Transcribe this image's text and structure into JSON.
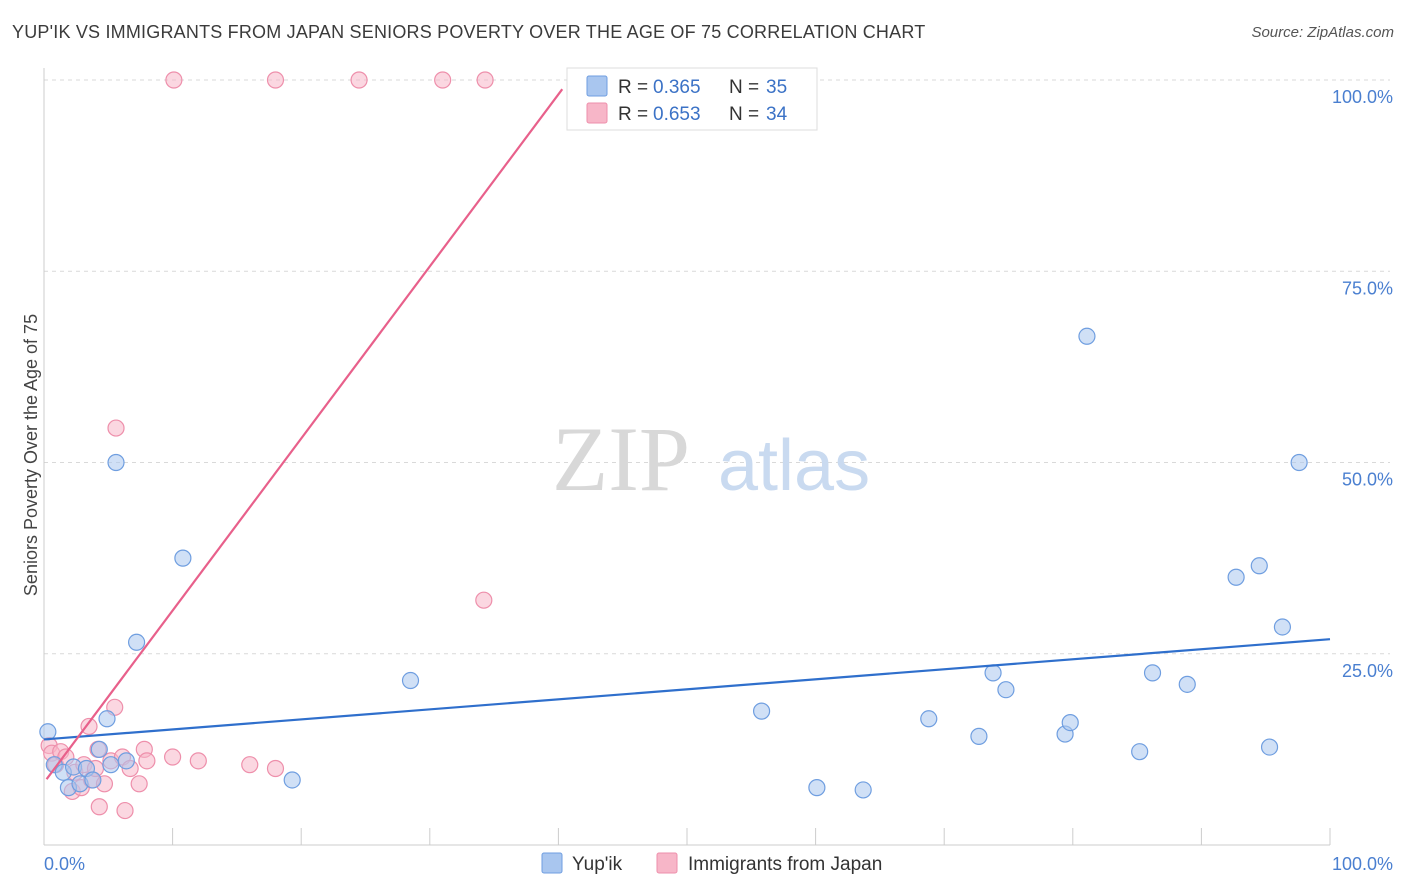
{
  "title": "YUP'IK VS IMMIGRANTS FROM JAPAN SENIORS POVERTY OVER THE AGE OF 75 CORRELATION CHART",
  "source": "Source: ZipAtlas.com",
  "watermark": {
    "zip": "ZIP",
    "atlas": "atlas"
  },
  "colors": {
    "blue_fill": "#a9c6ef",
    "blue_stroke": "#6f9ee0",
    "blue_line": "#2f6fcc",
    "pink_fill": "#f7b6c8",
    "pink_stroke": "#ee8fab",
    "pink_line": "#e8608b",
    "grid": "#d9d9d9",
    "axis_label": "#4a7fd0"
  },
  "legend": {
    "rows": [
      {
        "r_label": "R =",
        "r_value": "0.365",
        "n_label": "N =",
        "n_value": "35",
        "series": "blue"
      },
      {
        "r_label": "R =",
        "r_value": "0.653",
        "n_label": "N =",
        "n_value": "34",
        "series": "pink"
      }
    ]
  },
  "chart_data": {
    "type": "scatter",
    "title": "YUP'IK VS IMMIGRANTS FROM JAPAN SENIORS POVERTY OVER THE AGE OF 75 CORRELATION CHART",
    "xlabel": "",
    "ylabel": "Seniors Poverty Over the Age of 75",
    "xlim": [
      0,
      100
    ],
    "ylim": [
      0,
      100
    ],
    "x_tick_labels": [
      "0.0%",
      "100.0%"
    ],
    "y_tick_labels": [
      "25.0%",
      "50.0%",
      "75.0%",
      "100.0%"
    ],
    "y_ticks": [
      25,
      50,
      75,
      100
    ],
    "grid": true,
    "series": [
      {
        "name": "Yup'ik",
        "color": "blue",
        "points": [
          [
            0.3,
            14.8
          ],
          [
            0.8,
            10.5
          ],
          [
            1.5,
            9.5
          ],
          [
            1.9,
            7.5
          ],
          [
            2.3,
            10.2
          ],
          [
            2.8,
            8.0
          ],
          [
            3.3,
            10.0
          ],
          [
            3.8,
            8.5
          ],
          [
            4.3,
            12.5
          ],
          [
            4.9,
            16.5
          ],
          [
            5.2,
            10.5
          ],
          [
            5.6,
            50.0
          ],
          [
            6.4,
            11.0
          ],
          [
            7.2,
            26.5
          ],
          [
            10.8,
            37.5
          ],
          [
            19.3,
            8.5
          ],
          [
            28.5,
            21.5
          ],
          [
            55.8,
            17.5
          ],
          [
            60.1,
            7.5
          ],
          [
            63.7,
            7.2
          ],
          [
            68.8,
            16.5
          ],
          [
            72.7,
            14.2
          ],
          [
            73.8,
            22.5
          ],
          [
            74.8,
            20.3
          ],
          [
            79.4,
            14.5
          ],
          [
            79.8,
            16.0
          ],
          [
            81.1,
            66.5
          ],
          [
            85.2,
            12.2
          ],
          [
            86.2,
            22.5
          ],
          [
            88.9,
            21.0
          ],
          [
            92.7,
            35.0
          ],
          [
            94.5,
            36.5
          ],
          [
            95.3,
            12.8
          ],
          [
            96.3,
            28.5
          ],
          [
            97.6,
            50.0
          ]
        ]
      },
      {
        "name": "Immigrants from Japan",
        "color": "pink",
        "points": [
          [
            0.4,
            13.0
          ],
          [
            0.6,
            12.0
          ],
          [
            0.9,
            10.5
          ],
          [
            1.3,
            12.2
          ],
          [
            1.7,
            11.5
          ],
          [
            2.2,
            7.0
          ],
          [
            2.4,
            9.5
          ],
          [
            2.9,
            7.5
          ],
          [
            3.1,
            10.5
          ],
          [
            3.5,
            15.5
          ],
          [
            3.7,
            8.5
          ],
          [
            4.0,
            10.0
          ],
          [
            4.2,
            12.5
          ],
          [
            4.3,
            5.0
          ],
          [
            4.7,
            8.0
          ],
          [
            5.2,
            11.0
          ],
          [
            5.5,
            18.0
          ],
          [
            5.6,
            54.5
          ],
          [
            6.1,
            11.5
          ],
          [
            6.3,
            4.5
          ],
          [
            6.7,
            10.0
          ],
          [
            7.4,
            8.0
          ],
          [
            7.8,
            12.5
          ],
          [
            8.0,
            11.0
          ],
          [
            10.0,
            11.5
          ],
          [
            12.0,
            11.0
          ],
          [
            16.0,
            10.5
          ],
          [
            18.0,
            10.0
          ],
          [
            10.1,
            100.0
          ],
          [
            18.0,
            100.0
          ],
          [
            24.5,
            100.0
          ],
          [
            31.0,
            100.0
          ],
          [
            34.3,
            100.0
          ],
          [
            34.2,
            32.0
          ]
        ]
      }
    ],
    "trendlines": [
      {
        "series": "Yup'ik",
        "x": [
          0,
          100
        ],
        "y": [
          13.8,
          26.9
        ]
      },
      {
        "series": "Immigrants from Japan",
        "x": [
          0.2,
          40.3
        ],
        "y": [
          8.6,
          98.8
        ]
      }
    ]
  },
  "bottom_legend": [
    {
      "label": "Yup'ik",
      "color": "blue"
    },
    {
      "label": "Immigrants from Japan",
      "color": "pink"
    }
  ]
}
